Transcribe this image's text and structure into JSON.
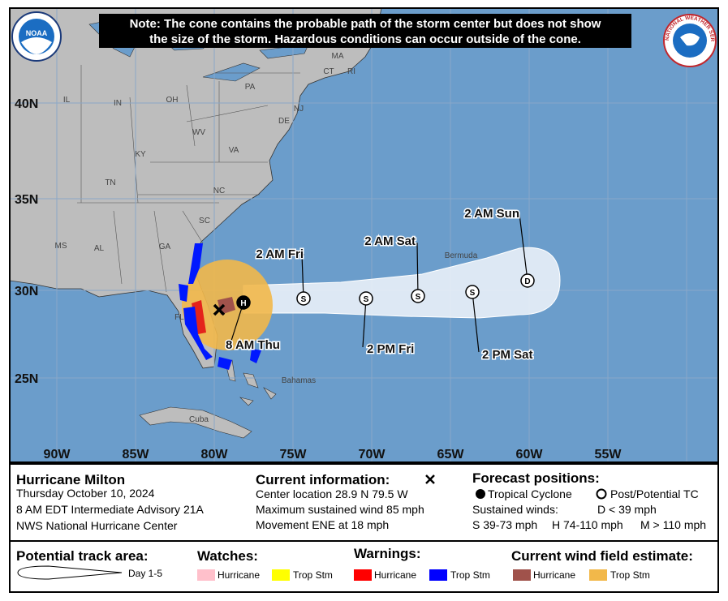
{
  "note": [
    "Note: The cone contains the probable path of the storm center but does not show",
    "the size of the storm. Hazardous conditions can occur outside of the cone."
  ],
  "logos": {
    "noaa": "NOAA",
    "nws": "NATIONAL WEATHER SERVICE"
  },
  "map": {
    "lat_labels": [
      "40N",
      "35N",
      "30N",
      "25N"
    ],
    "lon_labels": [
      "90W",
      "85W",
      "80W",
      "75W",
      "70W",
      "65W",
      "60W",
      "55W"
    ],
    "places": [
      "IL",
      "IN",
      "OH",
      "PA",
      "MA",
      "CT",
      "RI",
      "NJ",
      "DE",
      "WV",
      "VA",
      "KY",
      "TN",
      "NC",
      "SC",
      "GA",
      "AL",
      "MS",
      "FL",
      "Bermuda",
      "Bahamas",
      "Cuba"
    ],
    "track": [
      {
        "marker": "H",
        "label": "8 AM Thu"
      },
      {
        "marker": "S",
        "label": "2 AM Fri"
      },
      {
        "marker": "S",
        "label": "2 PM Fri"
      },
      {
        "marker": "S",
        "label": "2 AM Sat"
      },
      {
        "marker": "S",
        "label": "2 PM Sat"
      },
      {
        "marker": "D",
        "label": "2 AM Sun"
      }
    ]
  },
  "storm": {
    "name": "Hurricane Milton",
    "date": "Thursday October 10, 2024",
    "advisory": "8 AM EDT Intermediate Advisory 21A",
    "center": "NWS National Hurricane Center"
  },
  "current": {
    "title": "Current information:",
    "lines": [
      "Center location 28.9 N 79.5 W",
      "Maximum sustained wind 85 mph",
      "Movement ENE at 18 mph"
    ]
  },
  "forecast": {
    "title": "Forecast positions:",
    "tropical": "Tropical Cyclone",
    "post": "Post/Potential TC",
    "winds_title": "Sustained winds:",
    "d": "D < 39 mph",
    "s": "S 39-73 mph",
    "h": "H 74-110 mph",
    "m": "M > 110 mph"
  },
  "legend": {
    "track_title": "Potential track area:",
    "track_day": "Day 1-5",
    "watches_title": "Watches:",
    "watches": [
      "Hurricane",
      "Trop Stm"
    ],
    "warnings_title": "Warnings:",
    "warnings": [
      "Hurricane",
      "Trop Stm"
    ],
    "wind_title": "Current wind field estimate:",
    "wind": [
      "Hurricane",
      "Trop Stm"
    ]
  }
}
